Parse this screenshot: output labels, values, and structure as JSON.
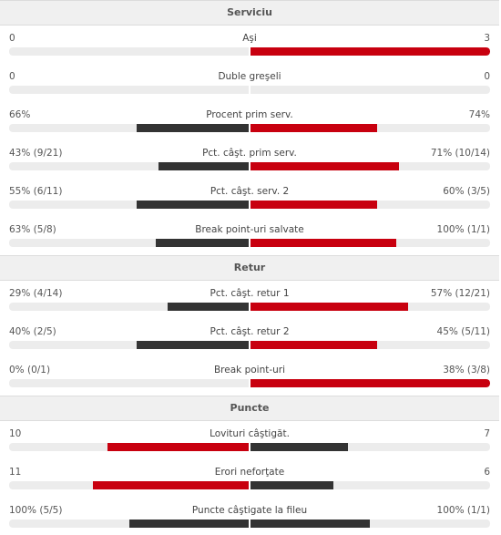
{
  "colors": {
    "winner": "#c8000f",
    "loser": "#333333",
    "track": "#ececec"
  },
  "sections": [
    {
      "title": "Serviciu",
      "stats": [
        {
          "name": "Aşi",
          "home": "0",
          "away": "3",
          "home_share": 0.0,
          "away_share": 1.0,
          "highlight": "away"
        },
        {
          "name": "Duble greşeli",
          "home": "0",
          "away": "0",
          "home_share": 0.0,
          "away_share": 0.0,
          "highlight": "none"
        },
        {
          "name": "Procent prim serv.",
          "home": "66%",
          "away": "74%",
          "home_share": 0.47,
          "away_share": 0.53,
          "highlight": "away"
        },
        {
          "name": "Pct. câşt. prim serv.",
          "home": "43% (9/21)",
          "away": "71% (10/14)",
          "home_share": 0.38,
          "away_share": 0.62,
          "highlight": "away"
        },
        {
          "name": "Pct. câşt. serv. 2",
          "home": "55% (6/11)",
          "away": "60% (3/5)",
          "home_share": 0.47,
          "away_share": 0.53,
          "highlight": "away"
        },
        {
          "name": "Break point-uri salvate",
          "home": "63% (5/8)",
          "away": "100% (1/1)",
          "home_share": 0.39,
          "away_share": 0.61,
          "highlight": "away"
        }
      ]
    },
    {
      "title": "Retur",
      "stats": [
        {
          "name": "Pct. câşt. retur 1",
          "home": "29% (4/14)",
          "away": "57% (12/21)",
          "home_share": 0.34,
          "away_share": 0.66,
          "highlight": "away"
        },
        {
          "name": "Pct. câşt. retur 2",
          "home": "40% (2/5)",
          "away": "45% (5/11)",
          "home_share": 0.47,
          "away_share": 0.53,
          "highlight": "away"
        },
        {
          "name": "Break point-uri",
          "home": "0% (0/1)",
          "away": "38% (3/8)",
          "home_share": 0.0,
          "away_share": 1.0,
          "highlight": "away"
        }
      ]
    },
    {
      "title": "Puncte",
      "stats": [
        {
          "name": "Lovituri câştigăt.",
          "home": "10",
          "away": "7",
          "home_share": 0.59,
          "away_share": 0.41,
          "highlight": "home"
        },
        {
          "name": "Erori neforţate",
          "home": "11",
          "away": "6",
          "home_share": 0.65,
          "away_share": 0.35,
          "highlight": "home"
        },
        {
          "name": "Puncte câştigate la fileu",
          "home": "100% (5/5)",
          "away": "100% (1/1)",
          "home_share": 0.5,
          "away_share": 0.5,
          "highlight": "none"
        }
      ]
    }
  ]
}
